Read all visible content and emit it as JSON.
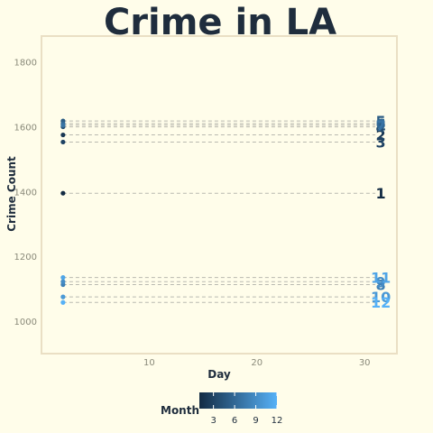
{
  "chart_data": {
    "type": "scatter",
    "title": "Crime in LA",
    "xlabel": "Day",
    "ylabel": "Crime Count",
    "xlim": [
      0,
      33
    ],
    "ylim": [
      900,
      1880
    ],
    "x_ticks": [
      10,
      20,
      30
    ],
    "y_ticks": [
      1000,
      1200,
      1400,
      1600,
      1800
    ],
    "grid": false,
    "legend": {
      "title": "Month",
      "type": "colorbar",
      "position": "bottom",
      "range": [
        1,
        12
      ],
      "ticks": [
        3,
        6,
        9,
        12
      ],
      "color_low": "#132b43",
      "color_high": "#56b1f7"
    },
    "series": [
      {
        "month": 1,
        "label": "1",
        "x": 2,
        "y": 1395
      },
      {
        "month": 2,
        "label": "2",
        "x": 2,
        "y": 1575
      },
      {
        "month": 3,
        "label": "3",
        "x": 2,
        "y": 1553
      },
      {
        "month": 4,
        "label": "4",
        "x": 2,
        "y": 1600
      },
      {
        "month": 5,
        "label": "5",
        "x": 2,
        "y": 1618
      },
      {
        "month": 6,
        "label": "6",
        "x": 2,
        "y": 1610
      },
      {
        "month": 7,
        "label": "7",
        "x": 2,
        "y": 1605
      },
      {
        "month": 8,
        "label": "8",
        "x": 2,
        "y": 1113
      },
      {
        "month": 9,
        "label": "9",
        "x": 2,
        "y": 1122
      },
      {
        "month": 10,
        "label": "10",
        "x": 2,
        "y": 1075
      },
      {
        "month": 11,
        "label": "11",
        "x": 2,
        "y": 1135
      },
      {
        "month": 12,
        "label": "12",
        "x": 2,
        "y": 1058
      }
    ],
    "label_x": 31.5
  }
}
